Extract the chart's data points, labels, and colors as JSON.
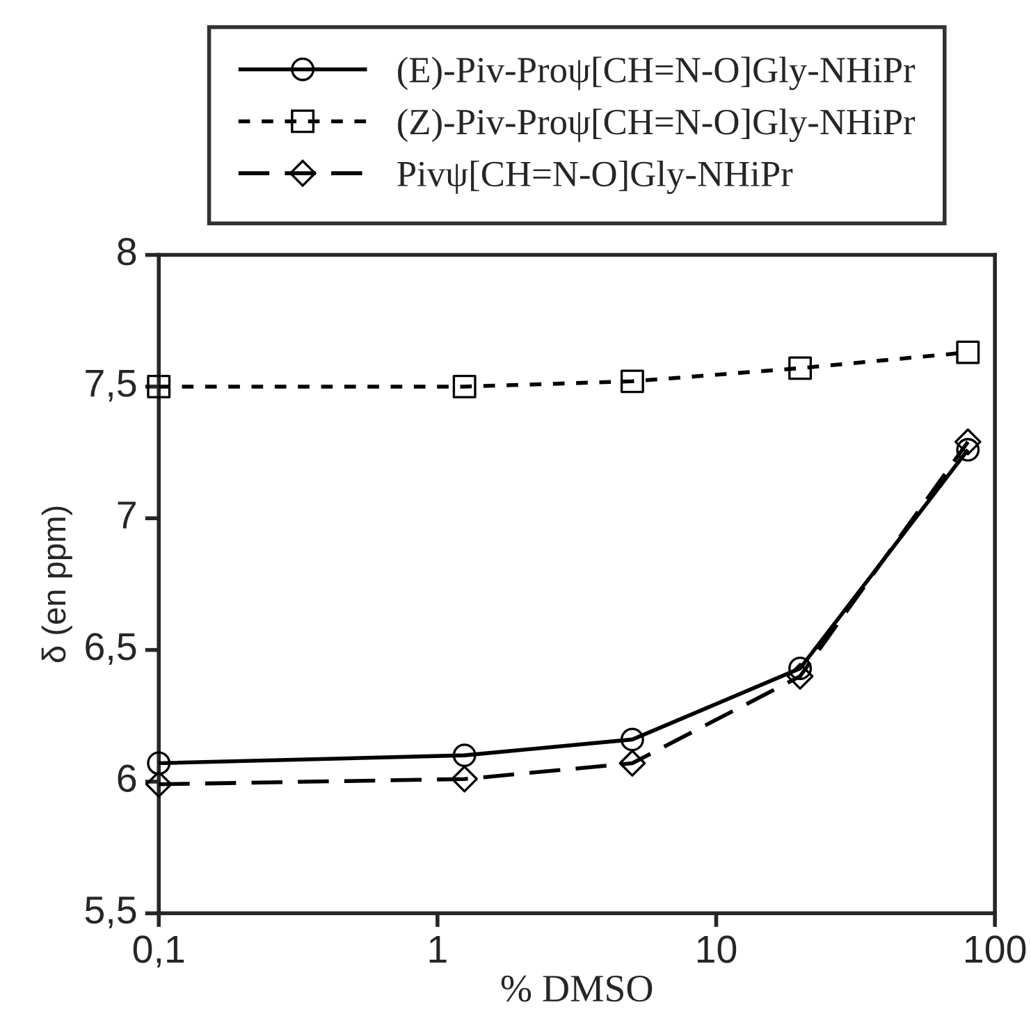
{
  "chart_data": {
    "type": "line",
    "xlabel": "% DMSO",
    "ylabel": "δ (en ppm)",
    "log": "x",
    "x": [
      0.1,
      1.25,
      5,
      20,
      80
    ],
    "xlim": [
      0.1,
      100
    ],
    "xticks": [
      {
        "value": 0.1,
        "label": "0,1"
      },
      1,
      10,
      100
    ],
    "ylim": [
      5.5,
      8
    ],
    "yticks": [
      {
        "value": 5.5,
        "label": "5,5"
      },
      6,
      {
        "value": 6.5,
        "label": "6,5"
      },
      7,
      {
        "value": 7.5,
        "label": "7,5"
      },
      8
    ],
    "grid": false,
    "legend": "top",
    "series": [
      {
        "name": "(E)-Piv-Proψ[CH=N-O]Gly-NHiPr",
        "color": "#000000",
        "marker": "circle",
        "line_style": "solid",
        "values": [
          6.07,
          6.1,
          6.16,
          6.43,
          7.26
        ]
      },
      {
        "name": "(Z)-Piv-Proψ[CH=N-O]Gly-NHiPr",
        "color": "#000000",
        "marker": "square",
        "line_style": "dotted",
        "values": [
          7.5,
          7.5,
          7.52,
          7.57,
          7.63
        ]
      },
      {
        "name": "Pivψ[CH=N-O]Gly-NHiPr",
        "color": "#000000",
        "marker": "diamond",
        "line_style": "dashed",
        "values": [
          5.99,
          6.01,
          6.07,
          6.4,
          7.29
        ]
      }
    ]
  }
}
